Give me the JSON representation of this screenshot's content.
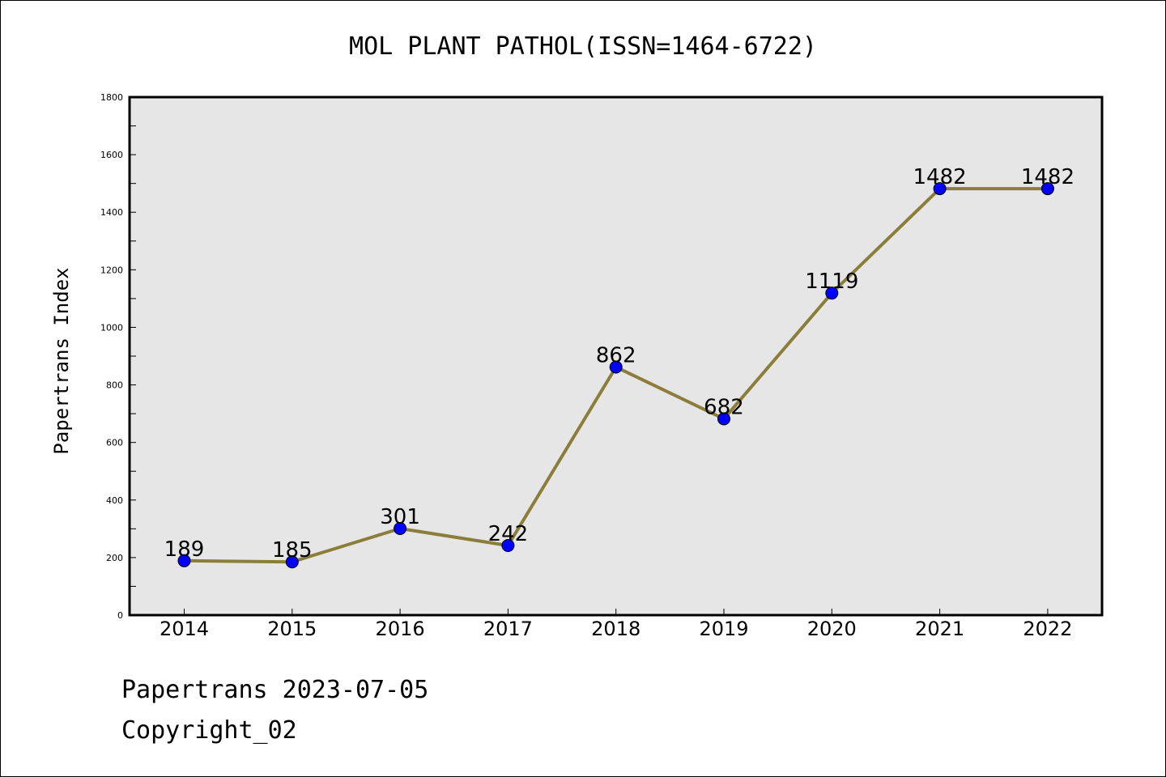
{
  "chart_data": {
    "type": "line",
    "title": "MOL PLANT PATHOL(ISSN=1464-6722)",
    "xlabel": "",
    "ylabel": "Papertrans Index",
    "categories": [
      "2014",
      "2015",
      "2016",
      "2017",
      "2018",
      "2019",
      "2020",
      "2021",
      "2022"
    ],
    "series": [
      {
        "values": [
          189,
          185,
          301,
          242,
          862,
          682,
          1119,
          1482,
          1482
        ]
      }
    ],
    "data_labels": [
      "189",
      "185",
      "301",
      "242",
      "862",
      "682",
      "1119",
      "1482",
      "1482"
    ],
    "ylim": [
      0,
      1800
    ],
    "y_ticks": [
      0,
      200,
      400,
      600,
      800,
      1000,
      1200,
      1400,
      1600,
      1800
    ],
    "grid": false,
    "colors": {
      "line": "#8b7d3a",
      "marker": "#0000ff",
      "plot_background": "#e6e6e6"
    }
  },
  "footer": {
    "line1": "Papertrans 2023-07-05",
    "line2": "Copyright_02"
  }
}
